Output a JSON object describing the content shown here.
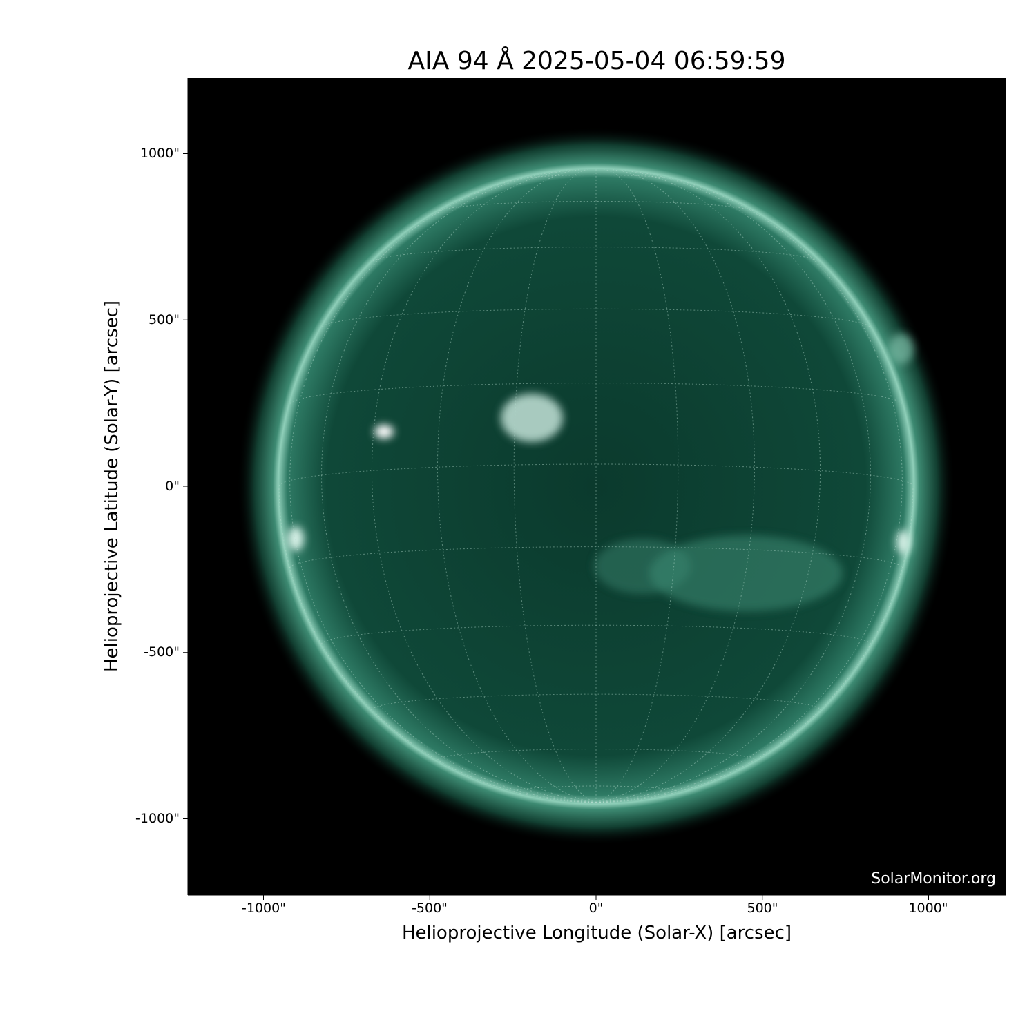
{
  "title": "AIA 94 Å 2025-05-04 06:59:59",
  "xlabel": "Helioprojective Longitude (Solar-X) [arcsec]",
  "ylabel": "Helioprojective Latitude (Solar-Y) [arcsec]",
  "x_ticks": [
    "-1000\"",
    "-500\"",
    "0\"",
    "500\"",
    "1000\""
  ],
  "y_ticks": [
    "1000\"",
    "500\"",
    "0\"",
    "-500\"",
    "-1000\""
  ],
  "x_tick_values": [
    -1000,
    -500,
    0,
    500,
    1000
  ],
  "y_tick_values": [
    1000,
    500,
    0,
    -500,
    -1000
  ],
  "xlim": [
    -1230,
    1230
  ],
  "ylim": [
    -1230,
    1230
  ],
  "watermark": "SolarMonitor.org",
  "colors": {
    "sun": "#0f4a3a",
    "limb": "#9fd8c4",
    "background": "#000000"
  },
  "grid": {
    "visible": true,
    "spacing_deg": 15
  }
}
